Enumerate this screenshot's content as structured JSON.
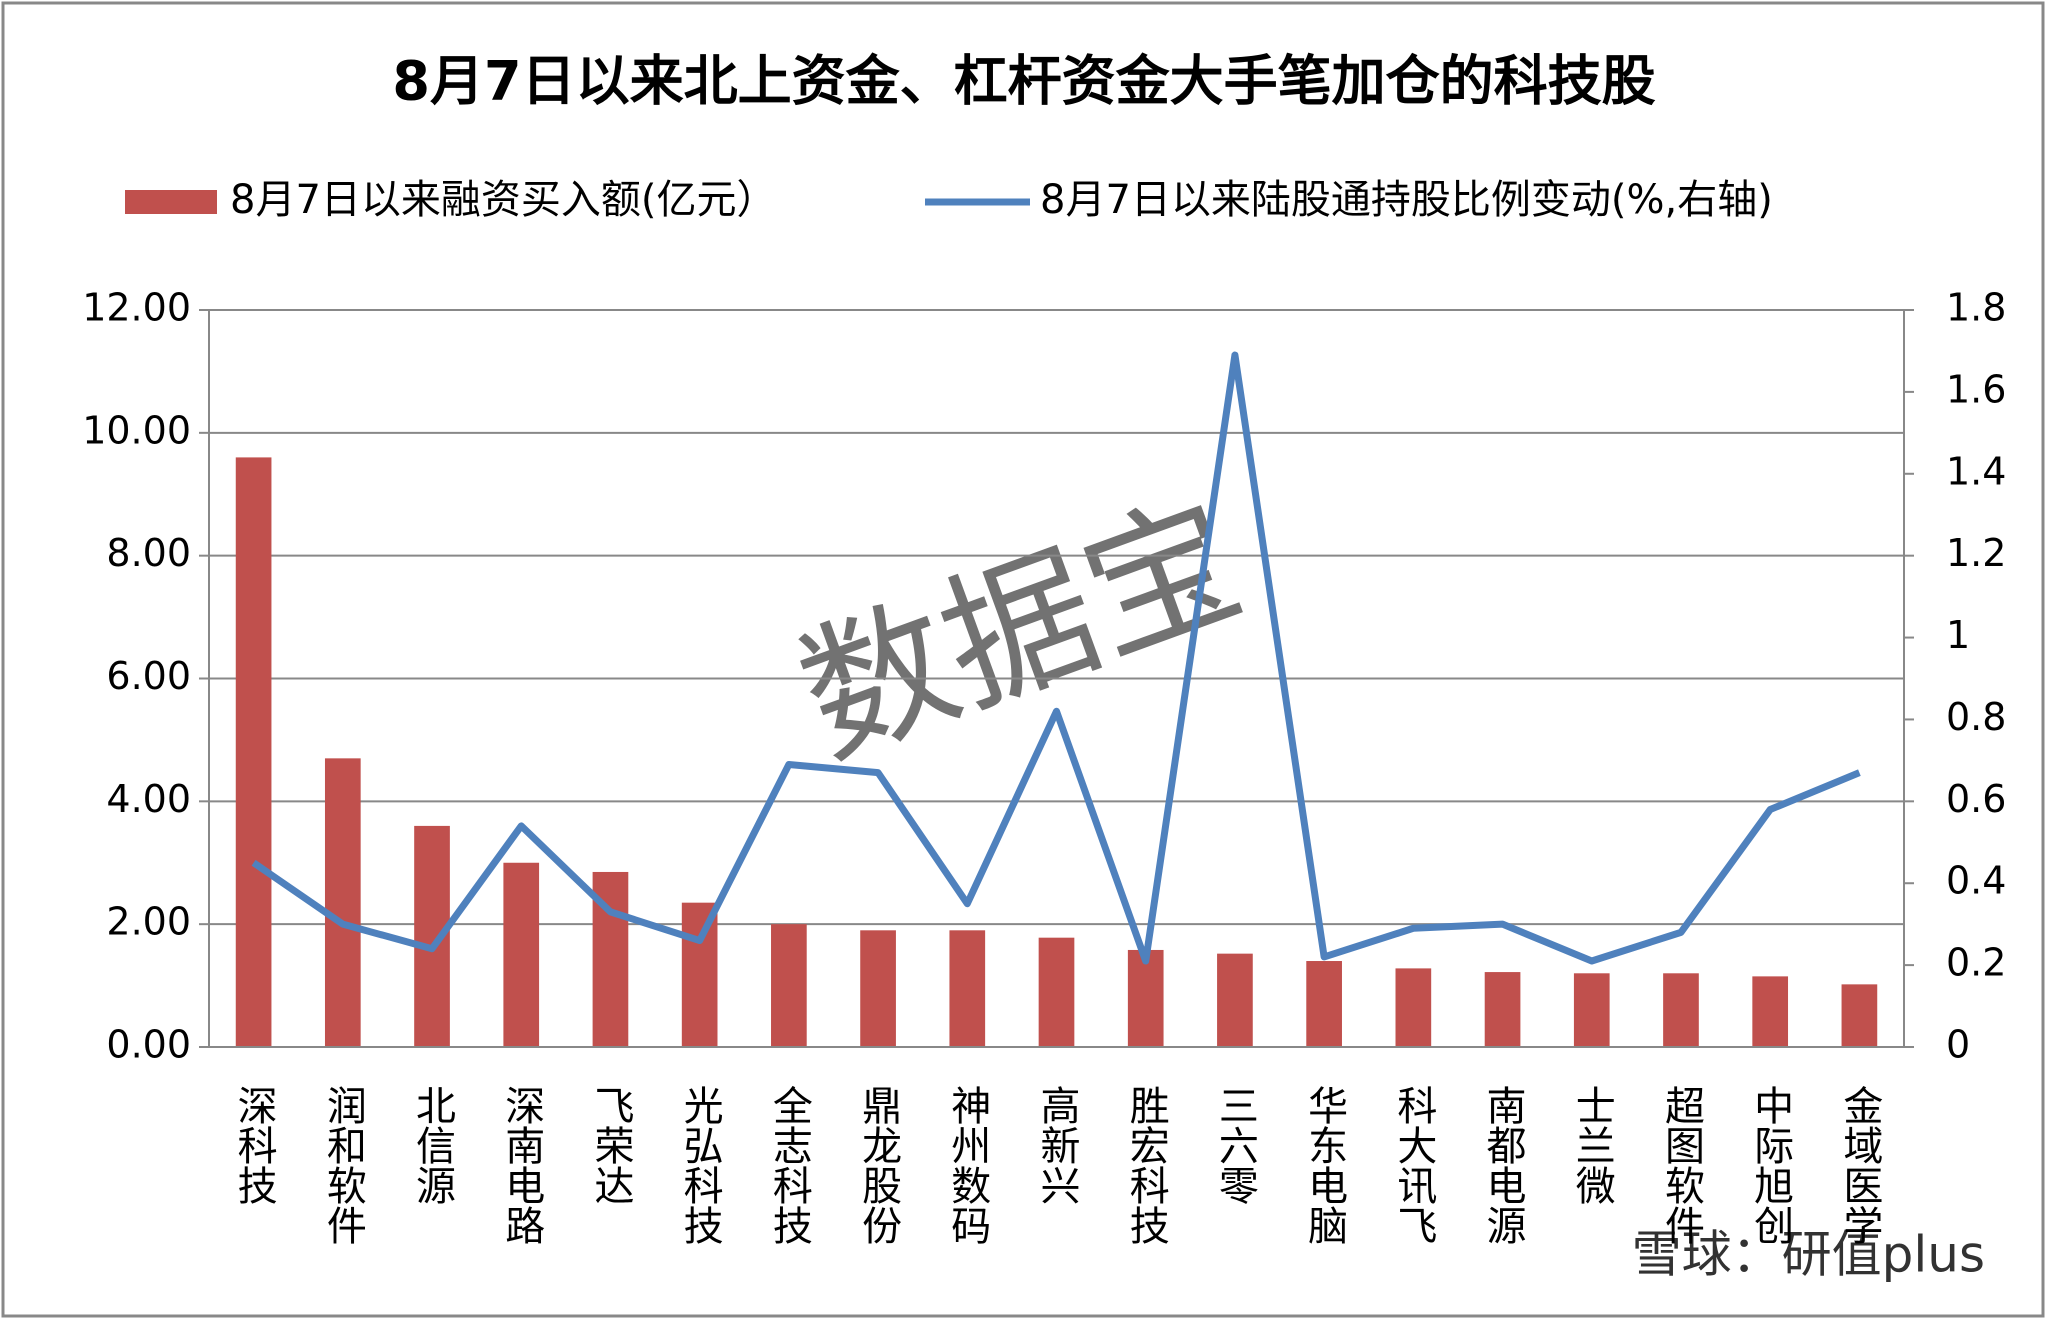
{
  "chart_data": {
    "type": "bar_line",
    "title": "8月7日以来北上资金、杠杆资金大手笔加仓的科技股",
    "categories": [
      "深科技",
      "润和软件",
      "北信源",
      "深南电路",
      "飞荣达",
      "光弘科技",
      "全志科技",
      "鼎龙股份",
      "神州数码",
      "高新兴",
      "胜宏科技",
      "三六零",
      "华东电脑",
      "科大讯飞",
      "南都电源",
      "士兰微",
      "超图软件",
      "中际旭创",
      "金域医学"
    ],
    "series": [
      {
        "name": "8月7日以来融资买入额(亿元）",
        "type": "bar",
        "color": "#c0504d",
        "values": [
          9.6,
          4.7,
          3.6,
          3.0,
          2.85,
          2.35,
          2.0,
          1.9,
          1.9,
          1.78,
          1.58,
          1.52,
          1.4,
          1.28,
          1.22,
          1.2,
          1.2,
          1.15,
          1.02
        ]
      },
      {
        "name": "8月7日以来陆股通持股比例变动(%,右轴)",
        "type": "line",
        "axis": "y2",
        "color": "#4f81bd",
        "values": [
          0.45,
          0.3,
          0.24,
          0.54,
          0.33,
          0.26,
          0.69,
          0.67,
          0.35,
          0.82,
          0.21,
          1.69,
          0.22,
          0.29,
          0.3,
          0.21,
          0.28,
          0.58,
          0.67
        ]
      }
    ],
    "ylim": [
      0,
      12
    ],
    "yticks": [
      {
        "value": 0,
        "label": "0.00"
      },
      {
        "value": 2,
        "label": "2.00"
      },
      {
        "value": 4,
        "label": "4.00"
      },
      {
        "value": 6,
        "label": "6.00"
      },
      {
        "value": 8,
        "label": "8.00"
      },
      {
        "value": 10,
        "label": "10.00"
      },
      {
        "value": 12,
        "label": "12.00"
      }
    ],
    "y2lim": [
      0,
      1.8
    ],
    "y2ticks": [
      0,
      0.2,
      0.4,
      0.6,
      0.8,
      1,
      1.2,
      1.4,
      1.6,
      1.8
    ],
    "grid": true,
    "legend": "top",
    "watermarks": [
      "数据宝",
      "雪球：研值plus"
    ]
  }
}
